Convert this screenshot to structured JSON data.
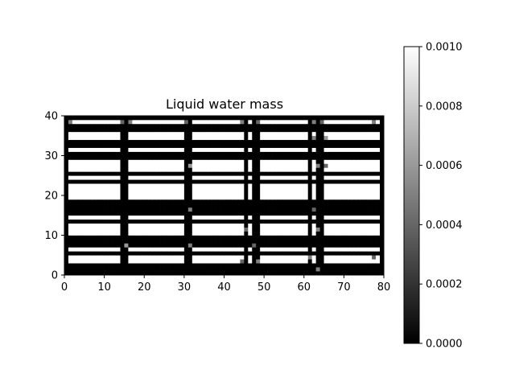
{
  "chart_data": {
    "type": "heatmap",
    "title": "Liquid water mass",
    "xlabel": "",
    "ylabel": "",
    "xlim": [
      0,
      80
    ],
    "ylim": [
      0,
      40
    ],
    "x_ticks": [
      "0",
      "10",
      "20",
      "30",
      "40",
      "50",
      "60",
      "70",
      "80"
    ],
    "y_ticks": [
      "0",
      "10",
      "20",
      "30",
      "40"
    ],
    "colormap": "gray",
    "vmin": 0.0,
    "vmax": 0.001,
    "colorbar_ticks": [
      "0.0000",
      "0.0002",
      "0.0004",
      "0.0006",
      "0.0008",
      "0.0010"
    ],
    "grid": false,
    "grid_shape": [
      40,
      80
    ],
    "description_values": "Most cells are 0.0000 (black) or 0.0010 (white); a few grey cells lie near the building-block edges",
    "white_row_bands": [
      [
        3,
        4
      ],
      [
        6,
        6
      ],
      [
        10,
        12
      ],
      [
        14,
        14
      ],
      [
        19,
        22
      ],
      [
        24,
        24
      ],
      [
        26,
        28
      ],
      [
        31,
        31
      ],
      [
        34,
        35
      ],
      [
        38,
        38
      ]
    ],
    "black_column_bands": [
      [
        0,
        0
      ],
      [
        14,
        15
      ],
      [
        30,
        31
      ],
      [
        45,
        45
      ],
      [
        47,
        48
      ],
      [
        61,
        61
      ],
      [
        63,
        64
      ],
      [
        79,
        79
      ]
    ],
    "grey_cells": [
      [
        1,
        38,
        0.0005
      ],
      [
        14,
        38,
        0.0004
      ],
      [
        16,
        38,
        0.0005
      ],
      [
        30,
        38,
        0.0004
      ],
      [
        44,
        38,
        0.0005
      ],
      [
        48,
        38,
        0.0004
      ],
      [
        62,
        38,
        0.0005
      ],
      [
        64,
        38,
        0.0004
      ],
      [
        77,
        38,
        0.0005
      ],
      [
        65,
        34,
        0.0006
      ],
      [
        62,
        34,
        0.0005
      ],
      [
        31,
        27,
        0.0006
      ],
      [
        63,
        27,
        0.0005
      ],
      [
        65,
        27,
        0.0004
      ],
      [
        31,
        16,
        0.0005
      ],
      [
        62,
        16,
        0.0004
      ],
      [
        63,
        11,
        0.0005
      ],
      [
        45,
        11,
        0.0004
      ],
      [
        15,
        7,
        0.0006
      ],
      [
        31,
        7,
        0.0005
      ],
      [
        47,
        7,
        0.0004
      ],
      [
        61,
        4,
        0.0005
      ],
      [
        77,
        4,
        0.0004
      ],
      [
        48,
        3,
        0.0005
      ],
      [
        44,
        3,
        0.0004
      ],
      [
        63,
        1,
        0.0005
      ]
    ]
  }
}
